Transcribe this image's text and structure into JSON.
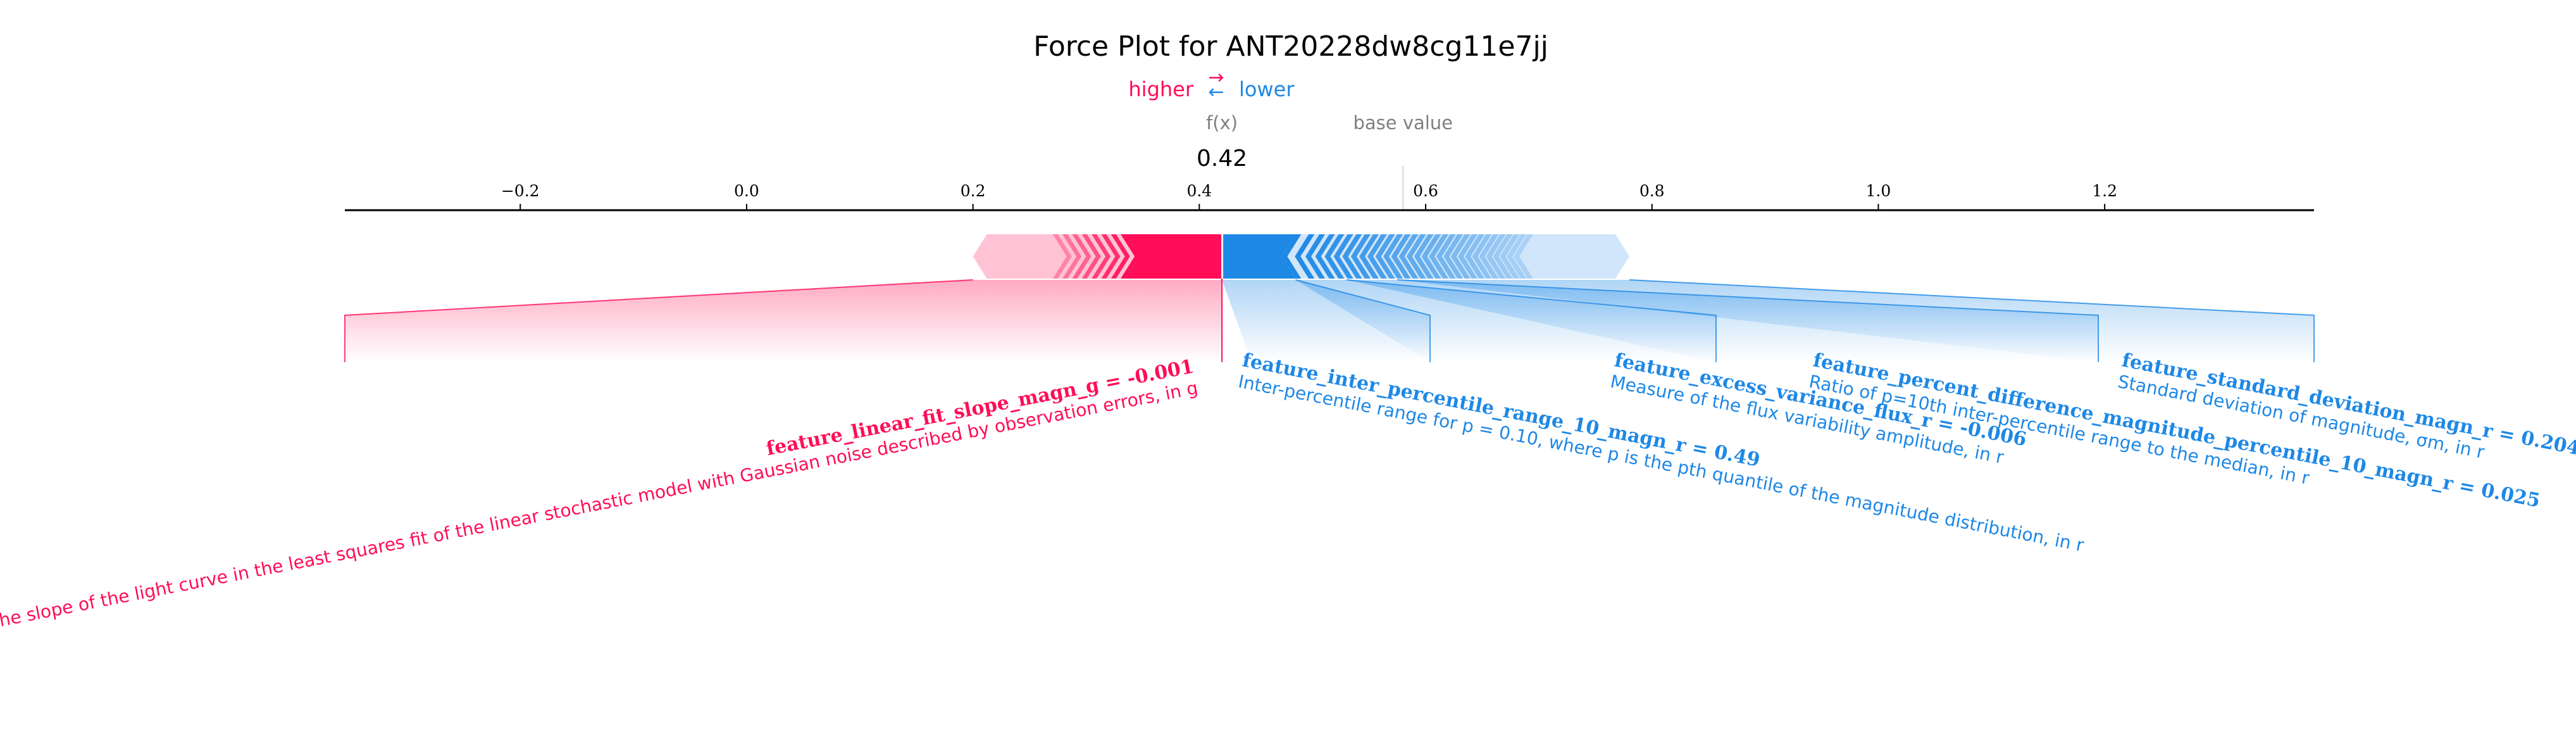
{
  "chart_data": {
    "type": "force",
    "title": "Force Plot for ANT20228dw8cg11e7jj",
    "legend": {
      "higher": "higher",
      "lower": "lower",
      "higher_color": "#ff0d57",
      "lower_color": "#1e88e5",
      "arrows": "→←"
    },
    "labels": {
      "fx": "f(x)",
      "fx_value": "0.42",
      "base": "base value"
    },
    "output_value": 0.42,
    "base_value": 0.58,
    "xlim": [
      -0.355,
      1.385
    ],
    "ticks": [
      {
        "value": -0.2,
        "label": "−0.2"
      },
      {
        "value": 0.0,
        "label": "0.0"
      },
      {
        "value": 0.2,
        "label": "0.2"
      },
      {
        "value": 0.4,
        "label": "0.4"
      },
      {
        "value": 0.6,
        "label": "0.6"
      },
      {
        "value": 0.8,
        "label": "0.8"
      },
      {
        "value": 1.0,
        "label": "1.0"
      },
      {
        "value": 1.2,
        "label": "1.2"
      }
    ],
    "positive_bar": {
      "start": 0.2,
      "end": 0.42,
      "dense_start": 0.275,
      "solid_start": 0.335
    },
    "negative_bar": {
      "start": 0.42,
      "end": 0.78,
      "solid_end": 0.485,
      "dense_end": 0.69
    },
    "features": [
      {
        "side": "positive",
        "name": "feature_linear_fit_slope_magn_g = -0.001",
        "description": "The slope of the light curve in the least squares fit of the linear stochastic model with Gaussian noise described by observation errors, in g",
        "seg_start": 0.2,
        "seg_end": 0.42
      },
      {
        "side": "negative",
        "name": "feature_inter_percentile_range_10_magn_r = 0.49",
        "description": "Inter-percentile range for p = 0.10, where p is the pth quantile of the magnitude distribution, in r",
        "seg_start": 0.42,
        "seg_end": 0.485
      },
      {
        "side": "negative",
        "name": "feature_excess_variance_flux_r = -0.006",
        "description": "Measure of the flux variability amplitude, in r",
        "seg_start": 0.485,
        "seg_end": 0.53
      },
      {
        "side": "negative",
        "name": "feature_percent_difference_magnitude_percentile_10_magn_r = 0.025",
        "description": "Ratio of p=10th inter-percentile range to the median, in r",
        "seg_start": 0.53,
        "seg_end": 0.575
      },
      {
        "side": "negative",
        "name": "feature_standard_deviation_magn_r = 0.204",
        "description": "Standard deviation of magnitude, σm, in r",
        "seg_start": 0.575,
        "seg_end": 0.78
      }
    ]
  }
}
